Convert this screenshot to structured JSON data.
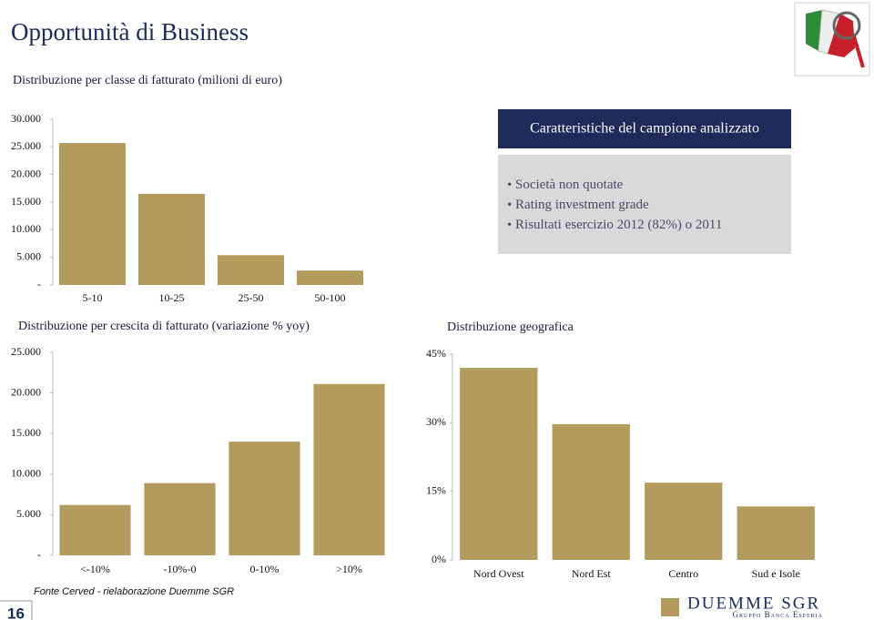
{
  "title": "Opportunità di Business",
  "box": {
    "title": "Caratteristiche del campione analizzato",
    "items": [
      "Società non quotate",
      "Rating investment grade",
      "Risultati esercizio 2012 (82%) o 2011"
    ]
  },
  "source": "Fonte Cerved - rielaborazione Duemme SGR",
  "page_number": "16",
  "logo": {
    "name": "DUEMME SGR",
    "group": "Gruppo Banca Esperia"
  },
  "chart_data": [
    {
      "type": "bar",
      "title": "Distribuzione per classe di fatturato (milioni di euro)",
      "categories": [
        "5-10",
        "10-25",
        "25-50",
        "50-100"
      ],
      "values": [
        25700,
        16500,
        5400,
        2600
      ],
      "color": "#b39a5d",
      "grid": false,
      "ylim": [
        0,
        30000
      ],
      "yticks": [
        {
          "value": 0,
          "label": "-"
        },
        {
          "value": 5000,
          "label": "5.000"
        },
        {
          "value": 10000,
          "label": "10.000"
        },
        {
          "value": 15000,
          "label": "15.000"
        },
        {
          "value": 20000,
          "label": "20.000"
        },
        {
          "value": 25000,
          "label": "25.000"
        },
        {
          "value": 30000,
          "label": "30.000"
        }
      ]
    },
    {
      "type": "bar",
      "title": "Distribuzione per crescita di fatturato (variazione % yoy)",
      "categories": [
        "<-10%",
        "-10%-0",
        "0-10%",
        ">10%"
      ],
      "values": [
        6200,
        8900,
        14000,
        21100
      ],
      "color": "#b39a5d",
      "grid": false,
      "ylim": [
        0,
        25000
      ],
      "yticks": [
        {
          "value": 0,
          "label": "-"
        },
        {
          "value": 5000,
          "label": "5.000"
        },
        {
          "value": 10000,
          "label": "10.000"
        },
        {
          "value": 15000,
          "label": "15.000"
        },
        {
          "value": 20000,
          "label": "20.000"
        },
        {
          "value": 25000,
          "label": "25.000"
        }
      ]
    },
    {
      "type": "bar",
      "title": "Distribuzione geografica",
      "categories": [
        "Nord Ovest",
        "Nord Est",
        "Centro",
        "Sud e Isole"
      ],
      "values": [
        42.0,
        29.7,
        16.9,
        11.7
      ],
      "color": "#b39a5d",
      "grid": false,
      "ylim": [
        0,
        45
      ],
      "yticks": [
        {
          "value": 0,
          "label": "0%"
        },
        {
          "value": 15,
          "label": "15%"
        },
        {
          "value": 30,
          "label": "30%"
        },
        {
          "value": 45,
          "label": "45%"
        }
      ]
    }
  ]
}
